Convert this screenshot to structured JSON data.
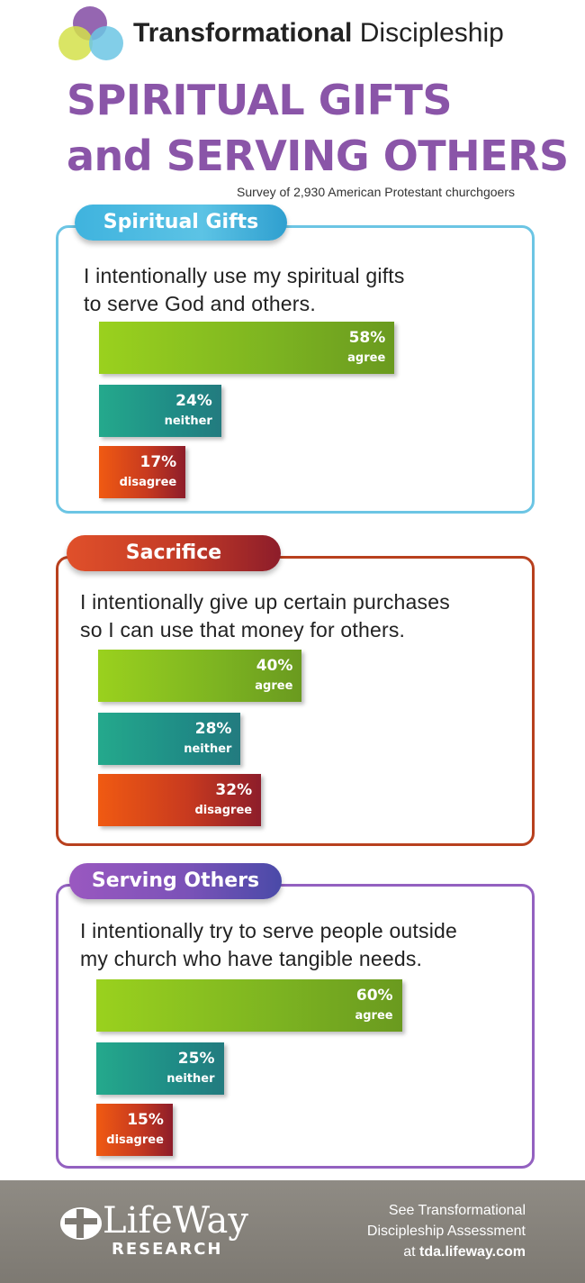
{
  "brand": {
    "bold": "Transformational",
    "light": "Discipleship"
  },
  "title": {
    "line1": "SPIRITUAL GIFTS",
    "line2": "and SERVING OTHERS"
  },
  "subtitle": "Survey of 2,930 American Protestant churchgoers",
  "colors": {
    "title": "#8a55a8",
    "spiritual_gifts": "#6cc5e4",
    "sacrifice": "#b8401e",
    "serving_others": "#9361c0",
    "agree": "#8cc21d",
    "neither": "#1f9a89",
    "disagree": "#d9401a"
  },
  "sections": [
    {
      "tab": "Spiritual Gifts",
      "line1": "I intentionally use my spiritual gifts",
      "line2": "to serve God and others.",
      "bars": [
        {
          "pct": "58%",
          "label": "agree"
        },
        {
          "pct": "24%",
          "label": "neither"
        },
        {
          "pct": "17%",
          "label": "disagree"
        }
      ]
    },
    {
      "tab": "Sacrifice",
      "line1": "I intentionally give up certain purchases",
      "line2": "so I can use that money for others.",
      "bars": [
        {
          "pct": "40%",
          "label": "agree"
        },
        {
          "pct": "28%",
          "label": "neither"
        },
        {
          "pct": "32%",
          "label": "disagree"
        }
      ]
    },
    {
      "tab": "Serving Others",
      "line1": "I intentionally try to serve people outside",
      "line2": "my church who have tangible needs.",
      "bars": [
        {
          "pct": "60%",
          "label": "agree"
        },
        {
          "pct": "25%",
          "label": "neither"
        },
        {
          "pct": "15%",
          "label": "disagree"
        }
      ]
    }
  ],
  "chart_data": [
    {
      "type": "bar",
      "title": "Spiritual Gifts",
      "categories": [
        "agree",
        "neither",
        "disagree"
      ],
      "values": [
        58,
        24,
        17
      ]
    },
    {
      "type": "bar",
      "title": "Sacrifice",
      "categories": [
        "agree",
        "neither",
        "disagree"
      ],
      "values": [
        40,
        28,
        32
      ]
    },
    {
      "type": "bar",
      "title": "Serving Others",
      "categories": [
        "agree",
        "neither",
        "disagree"
      ],
      "values": [
        60,
        25,
        15
      ]
    }
  ],
  "footer": {
    "logo_name": "LifeWay",
    "logo_research": "RESEARCH",
    "line1": "See Transformational",
    "line2": "Discipleship Assessment",
    "line3_prefix": "at ",
    "line3_url": "tda.lifeway.com"
  }
}
